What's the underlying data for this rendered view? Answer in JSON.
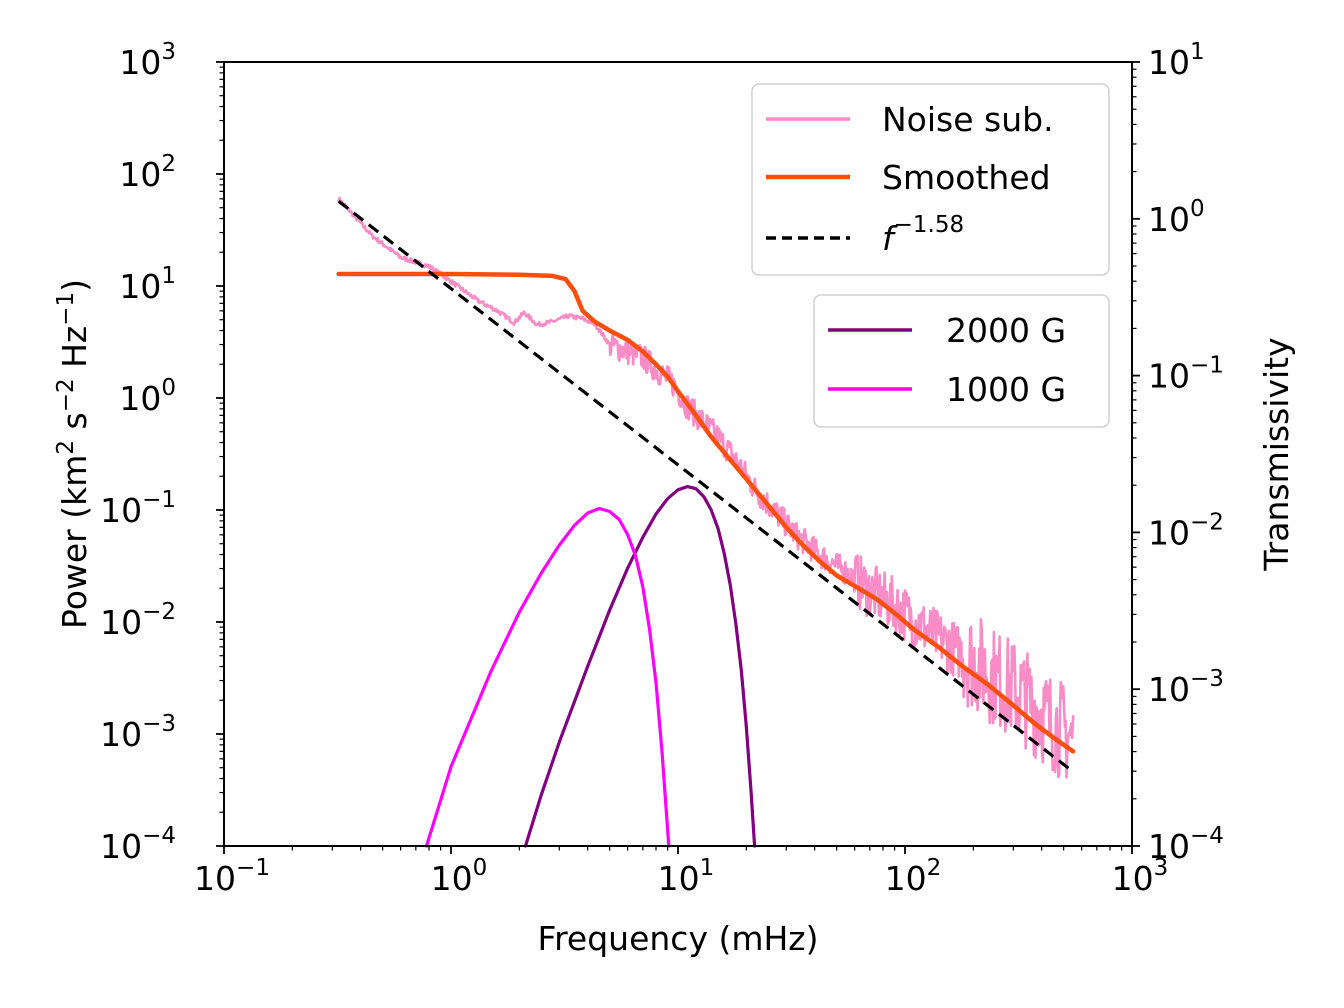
{
  "chart_data": {
    "type": "line",
    "xscale": "log",
    "yscale": "log",
    "xlabel": "Frequency (mHz)",
    "ylabel": "Power (km² s⁻² Hz⁻¹)",
    "ylabel_parts": {
      "a": "Power (km",
      "b": "2",
      "c": " s",
      "d": "−2",
      "e": " Hz",
      "f": "−1",
      "g": ")"
    },
    "y2label": "Transmissivity",
    "xlim": [
      0.1,
      1000
    ],
    "ylim": [
      0.0001,
      1000
    ],
    "y2lim": [
      0.0001,
      10
    ],
    "x_ticks": [
      {
        "value": 0.1,
        "base": "10",
        "exp": "−1"
      },
      {
        "value": 1,
        "base": "10",
        "exp": "0"
      },
      {
        "value": 10,
        "base": "10",
        "exp": "1"
      },
      {
        "value": 100,
        "base": "10",
        "exp": "2"
      },
      {
        "value": 1000,
        "base": "10",
        "exp": "3"
      }
    ],
    "y_ticks": [
      {
        "value": 0.0001,
        "base": "10",
        "exp": "−4"
      },
      {
        "value": 0.001,
        "base": "10",
        "exp": "−3"
      },
      {
        "value": 0.01,
        "base": "10",
        "exp": "−2"
      },
      {
        "value": 0.1,
        "base": "10",
        "exp": "−1"
      },
      {
        "value": 1,
        "base": "10",
        "exp": "0"
      },
      {
        "value": 10,
        "base": "10",
        "exp": "1"
      },
      {
        "value": 100,
        "base": "10",
        "exp": "2"
      },
      {
        "value": 1000,
        "base": "10",
        "exp": "3"
      }
    ],
    "y2_ticks": [
      {
        "value": 0.0001,
        "base": "10",
        "exp": "−4"
      },
      {
        "value": 0.001,
        "base": "10",
        "exp": "−3"
      },
      {
        "value": 0.01,
        "base": "10",
        "exp": "−2"
      },
      {
        "value": 0.1,
        "base": "10",
        "exp": "−1"
      },
      {
        "value": 1,
        "base": "10",
        "exp": "0"
      },
      {
        "value": 10,
        "base": "10",
        "exp": "1"
      }
    ],
    "series": [
      {
        "name": "Noise sub.",
        "color": "#f98cc6",
        "axis": "left",
        "noisy": true,
        "points": [
          [
            0.32,
            60
          ],
          [
            0.45,
            28
          ],
          [
            0.6,
            18
          ],
          [
            0.8,
            15
          ],
          [
            1.0,
            11
          ],
          [
            1.3,
            7.5
          ],
          [
            1.6,
            6
          ],
          [
            1.9,
            4.7
          ],
          [
            2.1,
            5.8
          ],
          [
            2.4,
            4.5
          ],
          [
            2.8,
            4.8
          ],
          [
            3.3,
            5.4
          ],
          [
            3.8,
            5.1
          ],
          [
            4.3,
            4.6
          ],
          [
            5.0,
            3.0
          ],
          [
            6.0,
            2.6
          ],
          [
            7.0,
            2.3
          ],
          [
            8.0,
            1.8
          ],
          [
            9.5,
            1.35
          ],
          [
            11,
            0.85
          ],
          [
            13,
            0.6
          ],
          [
            15,
            0.45
          ],
          [
            18,
            0.28
          ],
          [
            22,
            0.15
          ],
          [
            27,
            0.095
          ],
          [
            33,
            0.06
          ],
          [
            42,
            0.04
          ],
          [
            55,
            0.028
          ],
          [
            70,
            0.019
          ],
          [
            90,
            0.014
          ],
          [
            120,
            0.009
          ],
          [
            160,
            0.006
          ],
          [
            200,
            0.0045
          ],
          [
            260,
            0.003
          ],
          [
            330,
            0.0022
          ],
          [
            420,
            0.0014
          ],
          [
            550,
            0.0009
          ]
        ]
      },
      {
        "name": "Smoothed",
        "color": "#ff4d0a",
        "axis": "left",
        "noisy": false,
        "points": [
          [
            0.32,
            12.8
          ],
          [
            1.0,
            12.8
          ],
          [
            2.0,
            12.6
          ],
          [
            2.8,
            12.3
          ],
          [
            3.2,
            11.5
          ],
          [
            3.5,
            9.0
          ],
          [
            3.8,
            6.0
          ],
          [
            4.3,
            4.8
          ],
          [
            5.0,
            4.0
          ],
          [
            6.0,
            3.3
          ],
          [
            7.0,
            2.6
          ],
          [
            8.0,
            2.0
          ],
          [
            9.0,
            1.55
          ],
          [
            10,
            1.15
          ],
          [
            12,
            0.7
          ],
          [
            14,
            0.45
          ],
          [
            17,
            0.28
          ],
          [
            20,
            0.19
          ],
          [
            25,
            0.11
          ],
          [
            30,
            0.07
          ],
          [
            35,
            0.05
          ],
          [
            42,
            0.035
          ],
          [
            50,
            0.026
          ],
          [
            60,
            0.021
          ],
          [
            75,
            0.016
          ],
          [
            90,
            0.012
          ],
          [
            110,
            0.0085
          ],
          [
            140,
            0.006
          ],
          [
            180,
            0.004
          ],
          [
            230,
            0.0028
          ],
          [
            300,
            0.0018
          ],
          [
            380,
            0.0012
          ],
          [
            460,
            0.0009
          ],
          [
            550,
            0.0007
          ]
        ]
      },
      {
        "name": "f^-1.58",
        "color": "#000000",
        "axis": "left",
        "dashed": true,
        "points": [
          [
            0.32,
            57
          ],
          [
            550,
            0.00046
          ]
        ]
      },
      {
        "name": "2000 G",
        "color": "#800080",
        "axis": "right",
        "points": [
          [
            2.13,
            0.0001
          ],
          [
            2.5,
            0.000212
          ],
          [
            3.0,
            0.00046
          ],
          [
            4.0,
            0.0014
          ],
          [
            5.0,
            0.0032
          ],
          [
            6.0,
            0.0059
          ],
          [
            7.0,
            0.0093
          ],
          [
            8.0,
            0.0131
          ],
          [
            9.0,
            0.0164
          ],
          [
            10,
            0.0187
          ],
          [
            11,
            0.0196
          ],
          [
            12,
            0.019
          ],
          [
            13,
            0.0169
          ],
          [
            14,
            0.0139
          ],
          [
            15,
            0.0106
          ],
          [
            16,
            0.0073
          ],
          [
            17,
            0.0046
          ],
          [
            18,
            0.0026
          ],
          [
            19,
            0.00132
          ],
          [
            20,
            0.00058
          ],
          [
            21,
            0.00022
          ],
          [
            21.74,
            0.0001
          ]
        ]
      },
      {
        "name": "1000 G",
        "color": "#ff00ff",
        "axis": "right",
        "points": [
          [
            0.78,
            0.0001
          ],
          [
            1.0,
            0.00032
          ],
          [
            1.5,
            0.0013
          ],
          [
            2.0,
            0.0031
          ],
          [
            2.5,
            0.0055
          ],
          [
            3.0,
            0.0083
          ],
          [
            3.5,
            0.0111
          ],
          [
            4.0,
            0.0133
          ],
          [
            4.5,
            0.0142
          ],
          [
            5.0,
            0.0136
          ],
          [
            5.5,
            0.0121
          ],
          [
            6.0,
            0.0097
          ],
          [
            6.5,
            0.0071
          ],
          [
            7.0,
            0.0045
          ],
          [
            7.5,
            0.0024
          ],
          [
            8.0,
            0.0011
          ],
          [
            8.5,
            0.0004
          ],
          [
            9.11,
            0.0001
          ]
        ]
      }
    ],
    "legend_main": [
      {
        "label": "Noise sub.",
        "color": "#f98cc6",
        "style": "solid"
      },
      {
        "label": "Smoothed",
        "color": "#ff4d0a",
        "style": "solid"
      },
      {
        "label_base": "f",
        "label_exp": "−1.58",
        "color": "#000000",
        "style": "dashed"
      }
    ],
    "legend_field": [
      {
        "label": "2000 G",
        "color": "#800080",
        "style": "solid"
      },
      {
        "label": "1000 G",
        "color": "#ff00ff",
        "style": "solid"
      }
    ],
    "legend_placement": [
      "top-right",
      "right"
    ]
  }
}
